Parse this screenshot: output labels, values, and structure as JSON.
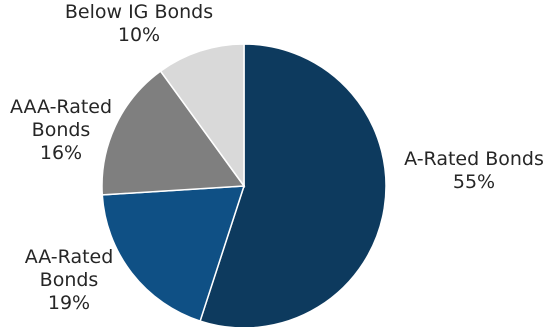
{
  "chart_data": {
    "type": "pie",
    "title": "",
    "start_angle_deg": 0,
    "direction": "clockwise",
    "slices": [
      {
        "label_lines": [
          "A-Rated Bonds"
        ],
        "value_label": "55%",
        "value": 55,
        "color": "#0d3a5e"
      },
      {
        "label_lines": [
          "AA-Rated",
          "Bonds"
        ],
        "value_label": "19%",
        "value": 19,
        "color": "#0f5085"
      },
      {
        "label_lines": [
          "AAA-Rated",
          "Bonds"
        ],
        "value_label": "16%",
        "value": 16,
        "color": "#7f7f7f"
      },
      {
        "label_lines": [
          "Below IG Bonds"
        ],
        "value_label": "10%",
        "value": 10,
        "color": "#d9d9d9"
      }
    ],
    "legend": "none"
  }
}
